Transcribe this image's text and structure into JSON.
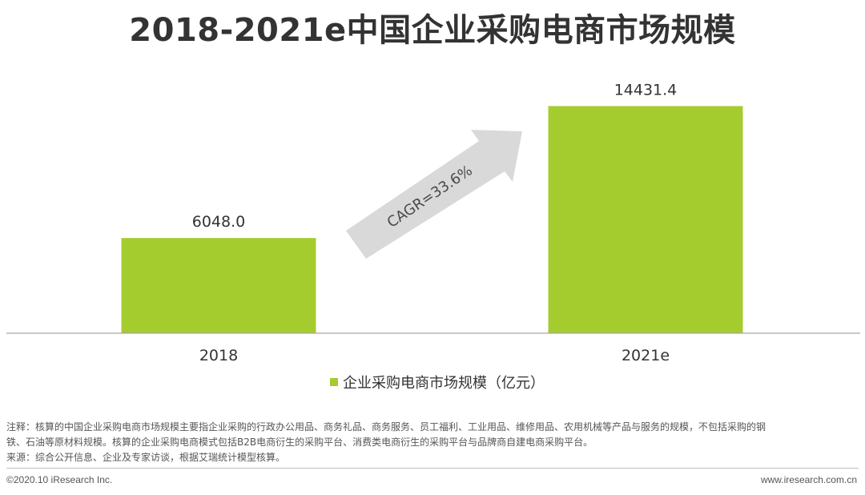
{
  "title": "2018-2021e中国企业采购电商市场规模",
  "chart_data": {
    "type": "bar",
    "title": "2018-2021e中国企业采购电商市场规模",
    "categories": [
      "2018",
      "2021e"
    ],
    "series": [
      {
        "name": "企业采购电商市场规模（亿元）",
        "values": [
          6048.0,
          14431.4
        ],
        "color": "#a5cc2f"
      }
    ],
    "data_labels": [
      "6048.0",
      "14431.4"
    ],
    "ylim": [
      0,
      17100
    ],
    "y_axis_visible": false,
    "grid": false,
    "legend_position": "bottom-center",
    "annotation": {
      "text": "CAGR=33.6%",
      "shape": "arrow",
      "color": "#d9d9d9"
    }
  },
  "notes": {
    "line1": "注释：核算的中国企业采购电商市场规模主要指企业采购的行政办公用品、商务礼品、商务服务、员工福利、工业用品、维修用品、农用机械等产品与服务的规模，不包括采购的钢",
    "line2": "铁、石油等原材料规模。核算的企业采购电商模式包括B2B电商衍生的采购平台、消费类电商衍生的采购平台与品牌商自建电商采购平台。",
    "source": "来源：综合公开信息、企业及专家访谈，根据艾瑞统计模型核算。"
  },
  "footer": {
    "copyright": "©2020.10 iResearch Inc.",
    "website": "www.iresearch.com.cn"
  }
}
